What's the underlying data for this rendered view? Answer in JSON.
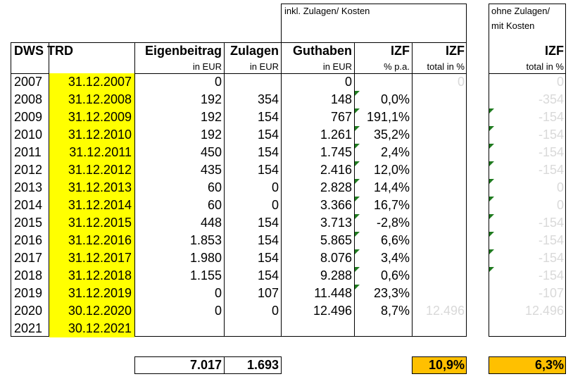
{
  "top_headers": {
    "incl": "inkl. Zulagen/ Kosten",
    "ohne_line1": "ohne Zulagen/",
    "ohne_line2": "mit Kosten"
  },
  "columns": {
    "title": "DWS TRD",
    "eigenbeitrag": "Eigenbeitrag",
    "zulagen": "Zulagen",
    "guthaben": "Guthaben",
    "izf1": "IZF",
    "izf2": "IZF",
    "izf3": "IZF"
  },
  "units": {
    "eigenbeitrag": "in EUR",
    "zulagen": "in EUR",
    "guthaben": "in EUR",
    "izf1": "% p.a.",
    "izf2": "total in %",
    "izf3": "total in %"
  },
  "rows": [
    {
      "year": "2007",
      "date": "31.12.2007",
      "eigen": "0",
      "zul": "",
      "guth": "0",
      "izf": "",
      "izf_total": "0",
      "ohne": "0"
    },
    {
      "year": "2008",
      "date": "31.12.2008",
      "eigen": "192",
      "zul": "354",
      "guth": "148",
      "izf": "0,0%",
      "izf_total": "",
      "ohne": "-354"
    },
    {
      "year": "2009",
      "date": "31.12.2009",
      "eigen": "192",
      "zul": "154",
      "guth": "767",
      "izf": "191,1%",
      "izf_total": "",
      "ohne": "-154"
    },
    {
      "year": "2010",
      "date": "31.12.2010",
      "eigen": "192",
      "zul": "154",
      "guth": "1.261",
      "izf": "35,2%",
      "izf_total": "",
      "ohne": "-154"
    },
    {
      "year": "2011",
      "date": "31.12.2011",
      "eigen": "450",
      "zul": "154",
      "guth": "1.745",
      "izf": "2,4%",
      "izf_total": "",
      "ohne": "-154"
    },
    {
      "year": "2012",
      "date": "31.12.2012",
      "eigen": "435",
      "zul": "154",
      "guth": "2.416",
      "izf": "12,0%",
      "izf_total": "",
      "ohne": "-154"
    },
    {
      "year": "2013",
      "date": "31.12.2013",
      "eigen": "60",
      "zul": "0",
      "guth": "2.828",
      "izf": "14,4%",
      "izf_total": "",
      "ohne": "0"
    },
    {
      "year": "2014",
      "date": "31.12.2014",
      "eigen": "60",
      "zul": "0",
      "guth": "3.366",
      "izf": "16,7%",
      "izf_total": "",
      "ohne": "0"
    },
    {
      "year": "2015",
      "date": "31.12.2015",
      "eigen": "448",
      "zul": "154",
      "guth": "3.713",
      "izf": "-2,8%",
      "izf_total": "",
      "ohne": "-154"
    },
    {
      "year": "2016",
      "date": "31.12.2016",
      "eigen": "1.853",
      "zul": "154",
      "guth": "5.865",
      "izf": "6,6%",
      "izf_total": "",
      "ohne": "-154"
    },
    {
      "year": "2017",
      "date": "31.12.2017",
      "eigen": "1.980",
      "zul": "154",
      "guth": "8.076",
      "izf": "3,4%",
      "izf_total": "",
      "ohne": "-154"
    },
    {
      "year": "2018",
      "date": "31.12.2018",
      "eigen": "1.155",
      "zul": "154",
      "guth": "9.288",
      "izf": "0,6%",
      "izf_total": "",
      "ohne": "-154"
    },
    {
      "year": "2019",
      "date": "31.12.2019",
      "eigen": "0",
      "zul": "107",
      "guth": "11.448",
      "izf": "23,3%",
      "izf_total": "",
      "ohne": "-107"
    },
    {
      "year": "2020",
      "date": "30.12.2020",
      "eigen": "0",
      "zul": "0",
      "guth": "12.496",
      "izf": "8,7%",
      "izf_total": "12.496",
      "ohne": "12.496"
    },
    {
      "year": "2021",
      "date": "30.12.2021",
      "eigen": "",
      "zul": "",
      "guth": "",
      "izf": "",
      "izf_total": "",
      "ohne": ""
    }
  ],
  "totals": {
    "eigen": "7.017",
    "zul": "1.693",
    "izf_total": "10,9%",
    "ohne": "6,3%"
  },
  "colors": {
    "date_highlight": "#ffff00",
    "total_highlight": "#ffc000",
    "muted_text": "#d9d9d9",
    "comment_marker": "#1f7a1f"
  }
}
